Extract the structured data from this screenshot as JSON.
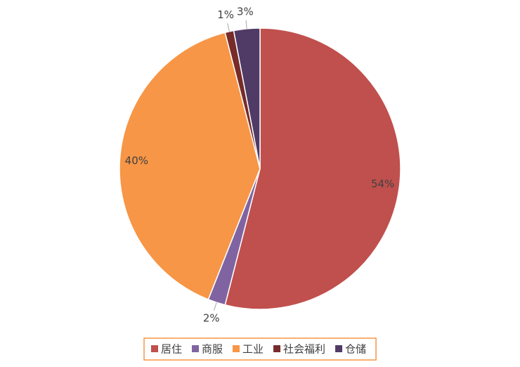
{
  "chart_data": {
    "type": "pie",
    "categories": [
      "居住",
      "商服",
      "工业",
      "社会福利",
      "仓储"
    ],
    "values": [
      54,
      2,
      40,
      1,
      3
    ],
    "value_labels": [
      "54%",
      "2%",
      "40%",
      "1%",
      "3%"
    ],
    "colors": [
      "#c0504d",
      "#8064a2",
      "#f79646",
      "#772c2a",
      "#4f3b66"
    ],
    "legend": "bottom"
  }
}
